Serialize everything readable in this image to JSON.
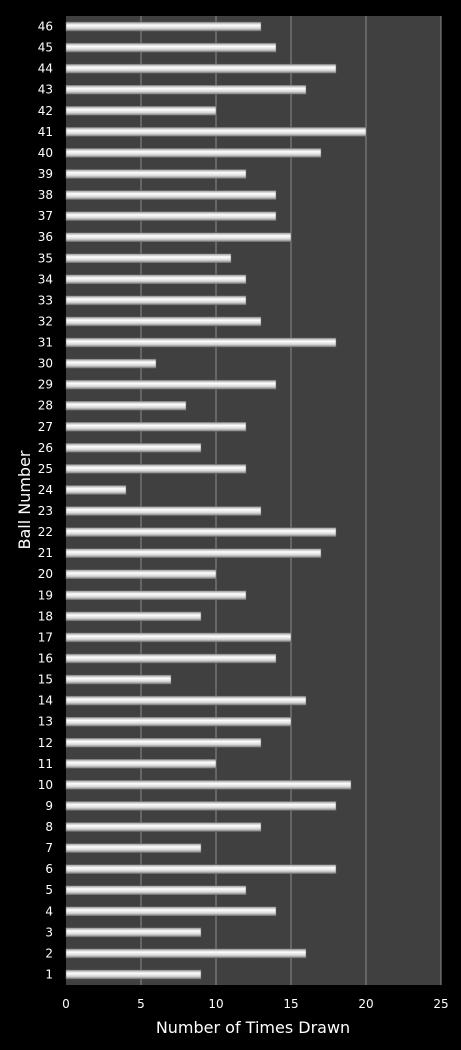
{
  "chart_data": {
    "type": "bar",
    "orientation": "horizontal",
    "title": "",
    "xlabel": "Number of Times Drawn",
    "ylabel": "Ball Number",
    "xlim": [
      0,
      25
    ],
    "xticks": [
      0,
      5,
      10,
      15,
      20,
      25
    ],
    "grid": true,
    "legend": "none",
    "colors": {
      "background": "#000000",
      "plot_area": "#404040",
      "bar": "#e0e0e0",
      "grid": "#8c8c8c",
      "text": "#ffffff"
    },
    "categories": [
      "1",
      "2",
      "3",
      "4",
      "5",
      "6",
      "7",
      "8",
      "9",
      "10",
      "11",
      "12",
      "13",
      "14",
      "15",
      "16",
      "17",
      "18",
      "19",
      "20",
      "21",
      "22",
      "23",
      "24",
      "25",
      "26",
      "27",
      "28",
      "29",
      "30",
      "31",
      "32",
      "33",
      "34",
      "35",
      "36",
      "37",
      "38",
      "39",
      "40",
      "41",
      "42",
      "43",
      "44",
      "45",
      "46"
    ],
    "series": [
      {
        "values": [
          9,
          16,
          9,
          14,
          12,
          18,
          9,
          13,
          18,
          19,
          10,
          13,
          15,
          16,
          7,
          14,
          15,
          9,
          12,
          10,
          17,
          18,
          13,
          4,
          12,
          9,
          12,
          8,
          14,
          6,
          18,
          13,
          12,
          12,
          11,
          15,
          14,
          14,
          12,
          17,
          20,
          10,
          16,
          18,
          14,
          13
        ]
      }
    ]
  }
}
